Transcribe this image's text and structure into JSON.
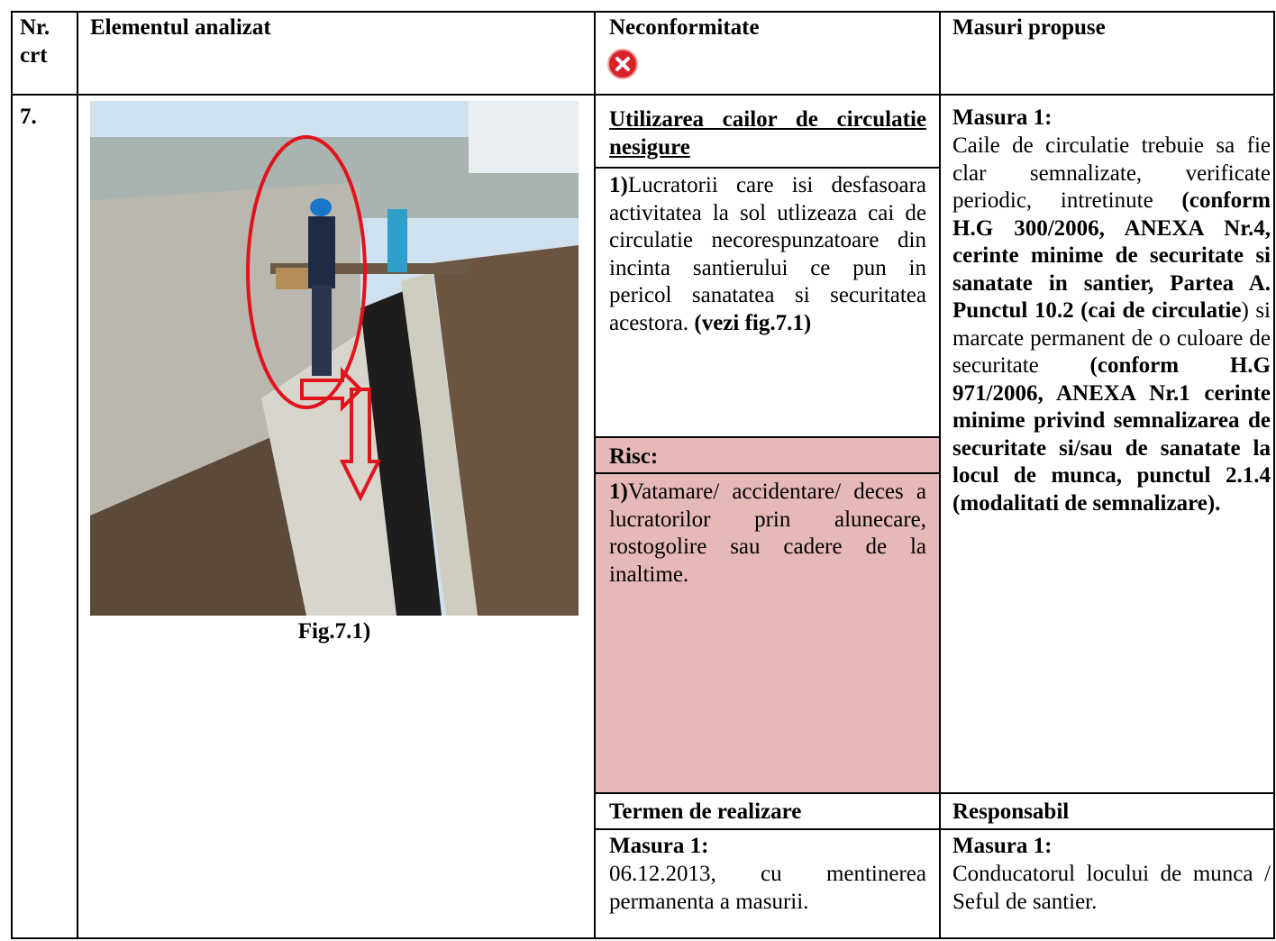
{
  "header": {
    "nr": "Nr. crt",
    "element": "Elementul analizat",
    "nonconformity": "Neconformitate",
    "measures": "Masuri propuse"
  },
  "row": {
    "nr": "7.",
    "figure_caption": "Fig.7.1)",
    "nonconformity_title": "Utilizarea cailor de circulatie nesigure",
    "nonconformity_text": [
      {
        "text": "1)",
        "bold": true
      },
      {
        "text": "Lucratorii care isi desfasoara activitatea la sol utlizeaza cai de circulatie necorespunzatoare din incinta santierului ce pun in pericol sanatatea si securitatea acestora. ",
        "bold": false
      },
      {
        "text": "(vezi fig.7.1)",
        "bold": true
      }
    ],
    "risk_title": "Risc:",
    "risk_text": [
      {
        "text": "1)",
        "bold": true
      },
      {
        "text": "Vatamare/ accidentare/ deces a lucratorilor prin alunecare, rostogolire sau cadere de la inaltime.",
        "bold": false
      }
    ],
    "measure_title": "Masura 1:",
    "measure_text": [
      {
        "text": "Caile de circulatie trebuie sa fie clar semnalizate, verificate periodic, intretinute ",
        "bold": false
      },
      {
        "text": "(conform H.G 300/2006, ANEXA Nr.4, cerinte minime de securitate si sanatate in santier, Partea A. Punctul 10.2 (cai de circulatie",
        "bold": true
      },
      {
        "text": ") si marcate permanent de o culoare de securitate ",
        "bold": false
      },
      {
        "text": "(conform H.G 971/2006, ANEXA Nr.1 cerinte minime privind semnalizarea de securitate si/sau de sanatate la locul de munca, punctul 2.1.4 (modalitati de semnalizare).",
        "bold": true
      }
    ],
    "deadline_header": "Termen de realizare",
    "deadline_title": "Masura 1:",
    "deadline_text": "06.12.2013, cu mentinerea permanenta a masurii.",
    "responsible_header": "Responsabil",
    "responsible_title": "Masura 1:",
    "responsible_text": "Conducatorul locului de munca / Seful de santier."
  }
}
